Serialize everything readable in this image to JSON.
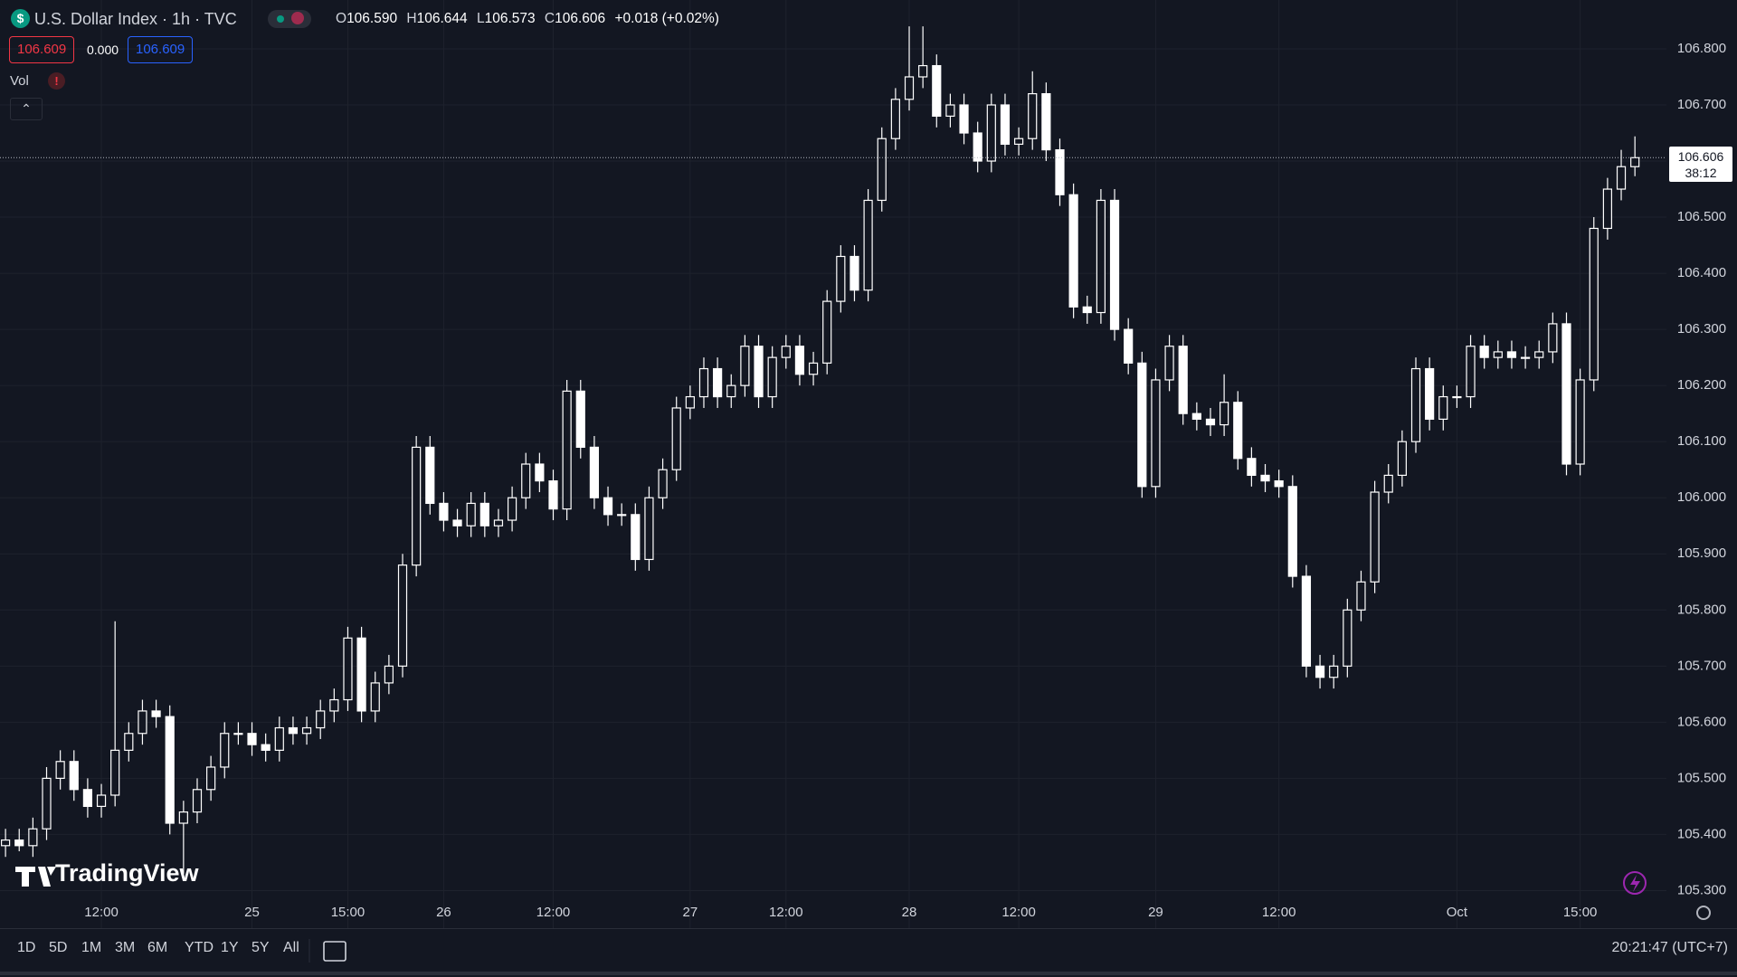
{
  "chart_data": {
    "type": "candlestick",
    "title": "U.S. Dollar Index · 1h · TVC",
    "header": {
      "o": "O",
      "open": "106.590",
      "h": "H",
      "high": "106.644",
      "l": "L",
      "low": "106.573",
      "c": "C",
      "close": "106.606",
      "change": "+0.018 (+0.02%)"
    },
    "categories": [
      null,
      null,
      null,
      null,
      null,
      null,
      null,
      "12:00",
      null,
      null,
      null,
      null,
      null,
      null,
      null,
      null,
      null,
      null,
      "25",
      null,
      null,
      null,
      null,
      null,
      null,
      "15:00",
      null,
      null,
      null,
      null,
      null,
      null,
      "26",
      null,
      null,
      null,
      null,
      null,
      null,
      null,
      "12:00",
      null,
      null,
      null,
      null,
      null,
      null,
      null,
      null,
      null,
      "27",
      null,
      null,
      null,
      null,
      null,
      null,
      "12:00",
      null,
      null,
      null,
      null,
      null,
      null,
      null,
      null,
      "28",
      null,
      null,
      null,
      null,
      null,
      null,
      null,
      "12:00",
      null,
      null,
      null,
      null,
      null,
      null,
      null,
      null,
      null,
      "29",
      null,
      null,
      null,
      null,
      null,
      null,
      null,
      null,
      "12:00",
      null,
      null,
      null,
      null,
      null,
      null,
      null,
      null,
      null,
      null,
      null,
      null,
      "Oct",
      null,
      null,
      null,
      null,
      null,
      null,
      null,
      null,
      "15:00",
      null,
      null,
      null,
      null
    ],
    "open": [
      105.38,
      105.39,
      105.38,
      105.41,
      105.5,
      105.53,
      105.48,
      105.45,
      105.47,
      105.55,
      105.58,
      105.62,
      105.61,
      105.42,
      105.44,
      105.48,
      105.52,
      105.58,
      105.58,
      105.56,
      105.55,
      105.59,
      105.58,
      105.59,
      105.62,
      105.64,
      105.75,
      105.62,
      105.67,
      105.7,
      105.88,
      106.09,
      105.99,
      105.96,
      105.95,
      105.99,
      105.95,
      105.96,
      106.0,
      106.06,
      106.03,
      105.98,
      106.19,
      106.09,
      106.0,
      105.97,
      105.97,
      105.89,
      106.0,
      106.05,
      106.16,
      106.18,
      106.23,
      106.18,
      106.2,
      106.27,
      106.18,
      106.25,
      106.27,
      106.22,
      106.24,
      106.35,
      106.43,
      106.37,
      106.53,
      106.64,
      106.71,
      106.75,
      106.77,
      106.68,
      106.7,
      106.65,
      106.6,
      106.7,
      106.63,
      106.64,
      106.72,
      106.62,
      106.54,
      106.34,
      106.33,
      106.53,
      106.3,
      106.24,
      106.02,
      106.21,
      106.27,
      106.15,
      106.14,
      106.13,
      106.17,
      106.07,
      106.04,
      106.03,
      106.02,
      105.86,
      105.7,
      105.68,
      105.7,
      105.8,
      105.85,
      106.01,
      106.04,
      106.1,
      106.23,
      106.14,
      106.18,
      106.18,
      106.27,
      106.25,
      106.26,
      106.25,
      106.25,
      106.26,
      106.31,
      106.06,
      106.21,
      106.48,
      106.55,
      106.59
    ],
    "high": [
      105.41,
      105.41,
      105.43,
      105.52,
      105.55,
      105.55,
      105.5,
      105.49,
      105.78,
      105.6,
      105.64,
      105.64,
      105.63,
      105.46,
      105.5,
      105.54,
      105.6,
      105.6,
      105.6,
      105.58,
      105.61,
      105.61,
      105.61,
      105.64,
      105.66,
      105.77,
      105.77,
      105.69,
      105.72,
      105.9,
      106.11,
      106.11,
      106.01,
      105.98,
      106.01,
      106.01,
      105.98,
      106.02,
      106.08,
      106.08,
      106.05,
      106.21,
      106.21,
      106.11,
      106.02,
      105.99,
      105.99,
      106.02,
      106.07,
      106.18,
      106.2,
      106.25,
      106.25,
      106.22,
      106.29,
      106.29,
      106.27,
      106.29,
      106.29,
      106.26,
      106.37,
      106.45,
      106.45,
      106.55,
      106.66,
      106.73,
      106.84,
      106.84,
      106.79,
      106.72,
      106.72,
      106.67,
      106.72,
      106.72,
      106.66,
      106.76,
      106.74,
      106.64,
      106.56,
      106.36,
      106.55,
      106.55,
      106.32,
      106.26,
      106.23,
      106.29,
      106.29,
      106.17,
      106.16,
      106.22,
      106.19,
      106.09,
      106.06,
      106.05,
      106.04,
      105.88,
      105.72,
      105.72,
      105.82,
      105.87,
      106.03,
      106.06,
      106.12,
      106.25,
      106.25,
      106.2,
      106.2,
      106.29,
      106.29,
      106.28,
      106.28,
      106.27,
      106.28,
      106.33,
      106.33,
      106.23,
      106.5,
      106.57,
      106.62,
      106.644
    ],
    "low": [
      105.36,
      105.37,
      105.36,
      105.39,
      105.48,
      105.46,
      105.43,
      105.43,
      105.45,
      105.53,
      105.56,
      105.59,
      105.4,
      105.33,
      105.42,
      105.46,
      105.5,
      105.56,
      105.54,
      105.53,
      105.53,
      105.56,
      105.56,
      105.57,
      105.6,
      105.62,
      105.6,
      105.6,
      105.65,
      105.68,
      105.86,
      105.97,
      105.94,
      105.93,
      105.93,
      105.93,
      105.93,
      105.94,
      105.98,
      106.01,
      105.96,
      105.96,
      106.07,
      105.98,
      105.95,
      105.95,
      105.87,
      105.87,
      105.98,
      106.03,
      106.14,
      106.16,
      106.16,
      106.16,
      106.18,
      106.16,
      106.16,
      106.23,
      106.2,
      106.2,
      106.22,
      106.33,
      106.35,
      106.35,
      106.51,
      106.62,
      106.69,
      106.73,
      106.66,
      106.66,
      106.63,
      106.58,
      106.58,
      106.61,
      106.61,
      106.62,
      106.6,
      106.52,
      106.32,
      106.31,
      106.31,
      106.28,
      106.22,
      106.0,
      106.0,
      106.19,
      106.13,
      106.12,
      106.11,
      106.11,
      106.05,
      106.02,
      106.01,
      106.0,
      105.84,
      105.68,
      105.66,
      105.66,
      105.68,
      105.78,
      105.83,
      105.99,
      106.02,
      106.08,
      106.12,
      106.12,
      106.16,
      106.16,
      106.23,
      106.23,
      106.23,
      106.23,
      106.23,
      106.24,
      106.04,
      106.04,
      106.19,
      106.46,
      106.53,
      106.573
    ],
    "close": [
      105.39,
      105.38,
      105.41,
      105.5,
      105.53,
      105.48,
      105.45,
      105.47,
      105.55,
      105.58,
      105.62,
      105.61,
      105.42,
      105.44,
      105.48,
      105.52,
      105.58,
      105.58,
      105.56,
      105.55,
      105.59,
      105.58,
      105.59,
      105.62,
      105.64,
      105.75,
      105.62,
      105.67,
      105.7,
      105.88,
      106.09,
      105.99,
      105.96,
      105.95,
      105.99,
      105.95,
      105.96,
      106.0,
      106.06,
      106.03,
      105.98,
      106.19,
      106.09,
      106.0,
      105.97,
      105.97,
      105.89,
      106.0,
      106.05,
      106.16,
      106.18,
      106.23,
      106.18,
      106.2,
      106.27,
      106.18,
      106.25,
      106.27,
      106.22,
      106.24,
      106.35,
      106.43,
      106.37,
      106.53,
      106.64,
      106.71,
      106.75,
      106.77,
      106.68,
      106.7,
      106.65,
      106.6,
      106.7,
      106.63,
      106.64,
      106.72,
      106.62,
      106.54,
      106.34,
      106.33,
      106.53,
      106.3,
      106.24,
      106.02,
      106.21,
      106.27,
      106.15,
      106.14,
      106.13,
      106.17,
      106.07,
      106.04,
      106.03,
      106.02,
      105.86,
      105.7,
      105.68,
      105.7,
      105.8,
      105.85,
      106.01,
      106.04,
      106.1,
      106.23,
      106.14,
      106.18,
      106.18,
      106.27,
      106.25,
      106.26,
      106.25,
      106.25,
      106.26,
      106.31,
      106.06,
      106.21,
      106.48,
      106.55,
      106.59,
      106.606
    ],
    "up_color": "#ffffff",
    "down_color": "#ffffff",
    "ylim": [
      105.233,
      106.887
    ],
    "yticks": [
      {
        "value": 105.3,
        "label": "105.300"
      },
      {
        "value": 105.4,
        "label": "105.400"
      },
      {
        "value": 105.5,
        "label": "105.500"
      },
      {
        "value": 105.6,
        "label": "105.600"
      },
      {
        "value": 105.7,
        "label": "105.700"
      },
      {
        "value": 105.8,
        "label": "105.800"
      },
      {
        "value": 105.9,
        "label": "105.900"
      },
      {
        "value": 106.0,
        "label": "106.000"
      },
      {
        "value": 106.1,
        "label": "106.100"
      },
      {
        "value": 106.2,
        "label": "106.200"
      },
      {
        "value": 106.3,
        "label": "106.300"
      },
      {
        "value": 106.4,
        "label": "106.400"
      },
      {
        "value": 106.5,
        "label": "106.500"
      },
      {
        "value": 106.6,
        "label": "106.600"
      },
      {
        "value": 106.7,
        "label": "106.700"
      },
      {
        "value": 106.8,
        "label": "106.800"
      }
    ],
    "grid": true,
    "price_tag": "106.606",
    "countdown": "38:12"
  },
  "ui": {
    "symbol_icon": "$",
    "bid": "106.609",
    "spread": "0.000",
    "ask": "106.609",
    "vol": "Vol",
    "vol_alert": "!",
    "logo": "TradingView",
    "timeframes": [
      "1D",
      "5D",
      "1M",
      "3M",
      "6M",
      "YTD",
      "1Y",
      "5Y",
      "All"
    ],
    "clock": "20:21:47 (UTC+7)"
  }
}
